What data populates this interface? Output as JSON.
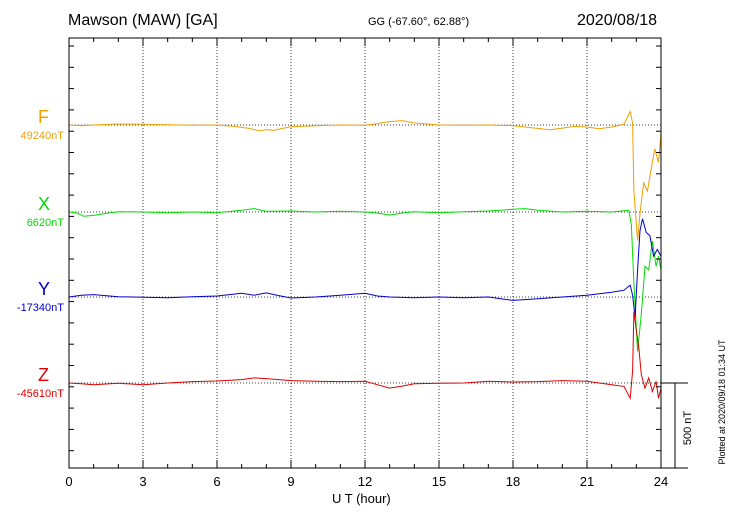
{
  "header": {
    "station": "Mawson (MAW)  [GA]",
    "coords": "GG (-67.60°,  62.88°)",
    "date": "2020/08/18"
  },
  "side_note": "Plotted at 2020/09/18 01:34 UT",
  "scale_bar": {
    "label": "500 nT",
    "value_nT": 500
  },
  "colors": {
    "F": "#f0a000",
    "X": "#00dd00",
    "Y": "#0000cc",
    "Z": "#dd0000"
  },
  "chart_data": {
    "type": "line",
    "title": "Mawson (MAW)  [GA]",
    "xlabel": "U T (hour)",
    "ylabel": "",
    "xlim": [
      0,
      24
    ],
    "x_ticks": [
      "0",
      "3",
      "6",
      "9",
      "12",
      "15",
      "18",
      "21",
      "24"
    ],
    "grid": true,
    "series": [
      {
        "name": "F",
        "baseline_label": "49240nT",
        "baseline": 49240,
        "points": [
          [
            0,
            49240
          ],
          [
            0.5,
            49236
          ],
          [
            1,
            49240
          ],
          [
            2,
            49246
          ],
          [
            3,
            49244
          ],
          [
            4,
            49242
          ],
          [
            5,
            49238
          ],
          [
            6,
            49240
          ],
          [
            6.7,
            49232
          ],
          [
            7.3,
            49220
          ],
          [
            7.7,
            49205
          ],
          [
            8,
            49213
          ],
          [
            8.3,
            49208
          ],
          [
            8.7,
            49222
          ],
          [
            9,
            49230
          ],
          [
            10,
            49236
          ],
          [
            11,
            49240
          ],
          [
            12,
            49238
          ],
          [
            12.5,
            49248
          ],
          [
            13,
            49260
          ],
          [
            13.5,
            49266
          ],
          [
            14,
            49252
          ],
          [
            15,
            49240
          ],
          [
            16,
            49238
          ],
          [
            17,
            49240
          ],
          [
            18,
            49236
          ],
          [
            19,
            49220
          ],
          [
            19.5,
            49212
          ],
          [
            20,
            49222
          ],
          [
            20.5,
            49232
          ],
          [
            21,
            49228
          ],
          [
            21.5,
            49218
          ],
          [
            22,
            49228
          ],
          [
            22.5,
            49244
          ],
          [
            22.75,
            49320
          ],
          [
            22.85,
            49250
          ],
          [
            22.9,
            48850
          ],
          [
            23.05,
            48560
          ],
          [
            23.15,
            48720
          ],
          [
            23.3,
            48900
          ],
          [
            23.45,
            48850
          ],
          [
            23.6,
            48980
          ],
          [
            23.75,
            49100
          ],
          [
            23.9,
            49020
          ],
          [
            24,
            49190
          ]
        ]
      },
      {
        "name": "X",
        "baseline_label": "6620nT",
        "baseline": 6620,
        "points": [
          [
            0,
            6620
          ],
          [
            0.3,
            6615
          ],
          [
            0.6,
            6595
          ],
          [
            1,
            6600
          ],
          [
            1.5,
            6612
          ],
          [
            2,
            6622
          ],
          [
            3,
            6620
          ],
          [
            4,
            6616
          ],
          [
            5,
            6620
          ],
          [
            6,
            6615
          ],
          [
            7,
            6630
          ],
          [
            7.5,
            6640
          ],
          [
            8,
            6624
          ],
          [
            9,
            6626
          ],
          [
            10,
            6620
          ],
          [
            11,
            6624
          ],
          [
            12,
            6620
          ],
          [
            12.5,
            6614
          ],
          [
            13,
            6602
          ],
          [
            13.5,
            6614
          ],
          [
            14,
            6622
          ],
          [
            15,
            6615
          ],
          [
            16,
            6622
          ],
          [
            17,
            6626
          ],
          [
            18,
            6636
          ],
          [
            18.5,
            6640
          ],
          [
            19,
            6630
          ],
          [
            20,
            6620
          ],
          [
            21,
            6624
          ],
          [
            22,
            6620
          ],
          [
            22.7,
            6630
          ],
          [
            22.8,
            6540
          ],
          [
            22.9,
            6200
          ],
          [
            23.05,
            5800
          ],
          [
            23.2,
            6020
          ],
          [
            23.35,
            6300
          ],
          [
            23.5,
            6280
          ],
          [
            23.65,
            6450
          ],
          [
            23.8,
            6300
          ],
          [
            23.9,
            6360
          ],
          [
            24,
            6280
          ]
        ]
      },
      {
        "name": "Y",
        "baseline_label": "-17340nT",
        "baseline": -17340,
        "points": [
          [
            0,
            -17340
          ],
          [
            0.5,
            -17330
          ],
          [
            1,
            -17326
          ],
          [
            2,
            -17338
          ],
          [
            3,
            -17342
          ],
          [
            4,
            -17344
          ],
          [
            5,
            -17338
          ],
          [
            6,
            -17334
          ],
          [
            7,
            -17318
          ],
          [
            7.5,
            -17330
          ],
          [
            8,
            -17316
          ],
          [
            8.5,
            -17332
          ],
          [
            9,
            -17346
          ],
          [
            10,
            -17340
          ],
          [
            11,
            -17330
          ],
          [
            12,
            -17318
          ],
          [
            12.5,
            -17334
          ],
          [
            13,
            -17340
          ],
          [
            14,
            -17344
          ],
          [
            15,
            -17340
          ],
          [
            16,
            -17344
          ],
          [
            17,
            -17340
          ],
          [
            18,
            -17360
          ],
          [
            19,
            -17350
          ],
          [
            20,
            -17340
          ],
          [
            21,
            -17330
          ],
          [
            22,
            -17312
          ],
          [
            22.5,
            -17300
          ],
          [
            22.75,
            -17270
          ],
          [
            22.85,
            -17330
          ],
          [
            22.95,
            -17460
          ],
          [
            23.05,
            -17180
          ],
          [
            23.15,
            -16950
          ],
          [
            23.25,
            -16880
          ],
          [
            23.4,
            -16960
          ],
          [
            23.55,
            -16980
          ],
          [
            23.7,
            -17100
          ],
          [
            23.85,
            -17060
          ],
          [
            24,
            -17100
          ]
        ]
      },
      {
        "name": "Z",
        "baseline_label": "-45610nT",
        "baseline": -45610,
        "points": [
          [
            0,
            -45610
          ],
          [
            0.5,
            -45614
          ],
          [
            1,
            -45620
          ],
          [
            2,
            -45612
          ],
          [
            3,
            -45620
          ],
          [
            4,
            -45610
          ],
          [
            5,
            -45602
          ],
          [
            6,
            -45598
          ],
          [
            7,
            -45590
          ],
          [
            7.5,
            -45580
          ],
          [
            8,
            -45584
          ],
          [
            9,
            -45596
          ],
          [
            10,
            -45600
          ],
          [
            11,
            -45602
          ],
          [
            12,
            -45600
          ],
          [
            12.5,
            -45620
          ],
          [
            13,
            -45640
          ],
          [
            13.5,
            -45628
          ],
          [
            14,
            -45614
          ],
          [
            15,
            -45612
          ],
          [
            16,
            -45610
          ],
          [
            17,
            -45600
          ],
          [
            18,
            -45604
          ],
          [
            19,
            -45602
          ],
          [
            20,
            -45596
          ],
          [
            21,
            -45600
          ],
          [
            21.5,
            -45610
          ],
          [
            22,
            -45620
          ],
          [
            22.5,
            -45630
          ],
          [
            22.75,
            -45700
          ],
          [
            22.85,
            -45540
          ],
          [
            22.9,
            -45190
          ],
          [
            23.0,
            -45300
          ],
          [
            23.1,
            -45400
          ],
          [
            23.2,
            -45560
          ],
          [
            23.35,
            -45640
          ],
          [
            23.5,
            -45580
          ],
          [
            23.65,
            -45660
          ],
          [
            23.8,
            -45600
          ],
          [
            23.9,
            -45700
          ],
          [
            24,
            -45640
          ]
        ]
      }
    ]
  }
}
